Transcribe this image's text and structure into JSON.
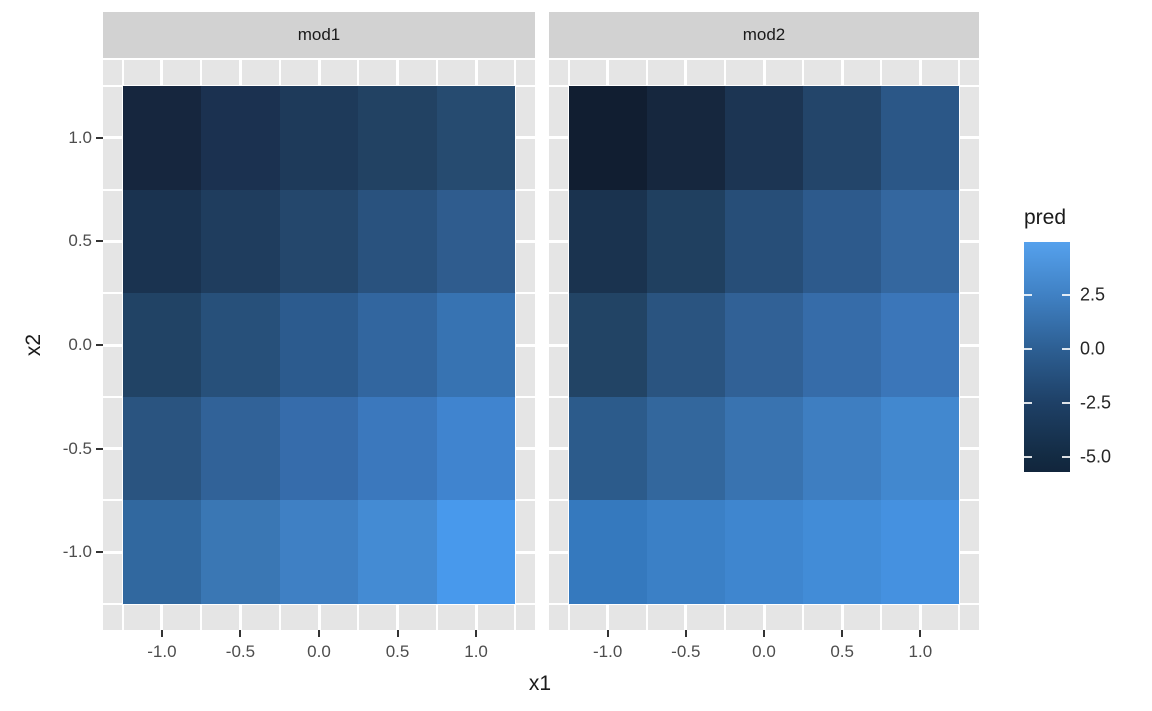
{
  "figure": {
    "background": "#ffffff",
    "panel_bg": "#e5e5e5",
    "strip_bg": "#d2d2d2",
    "grid_color": "#ffffff",
    "axis_tick_color": "#333333",
    "axis_text_color": "#4d4d4d",
    "title_text_color": "#1a1a1a"
  },
  "chart_data": {
    "type": "heatmap",
    "title": "",
    "xlabel": "x1",
    "ylabel": "x2",
    "x": [
      -1.0,
      -0.5,
      0.0,
      0.5,
      1.0
    ],
    "y_top_to_bottom": [
      1.0,
      0.5,
      0.0,
      -0.5,
      -1.0
    ],
    "x_tick_labels": [
      "-1.0",
      "-0.5",
      "0.0",
      "0.5",
      "1.0"
    ],
    "y_tick_labels": [
      "1.0",
      "0.5",
      "0.0",
      "-0.5",
      "-1.0"
    ],
    "x_range_data": [
      -1.25,
      1.25
    ],
    "y_range_data": [
      -1.25,
      1.25
    ],
    "grid": true,
    "facets": [
      {
        "label": "mod1",
        "values_rows_top_to_bottom": [
          [
            -5.1,
            -3.9,
            -3.3,
            -2.7,
            -2.0
          ],
          [
            -3.9,
            -3.0,
            -2.2,
            -1.2,
            -0.3
          ],
          [
            -2.6,
            -1.4,
            -0.3,
            0.6,
            1.6
          ],
          [
            -1.1,
            0.2,
            1.2,
            2.1,
            3.1
          ],
          [
            0.6,
            1.7,
            2.5,
            3.3,
            4.6
          ]
        ],
        "tile_colors_rows_top_to_bottom": [
          [
            "#16263e",
            "#1b3150",
            "#1e3a5a",
            "#224263",
            "#264b70"
          ],
          [
            "#1a3350",
            "#1f3d5e",
            "#24476c",
            "#29527e",
            "#2f5c8e"
          ],
          [
            "#214365",
            "#27507a",
            "#2c5b8e",
            "#32669f",
            "#3773b2"
          ],
          [
            "#2a5480",
            "#316298",
            "#366cab",
            "#3b78bd",
            "#4084cf"
          ],
          [
            "#31689f",
            "#3a77b4",
            "#3f80c4",
            "#448bd3",
            "#4899ec"
          ]
        ]
      },
      {
        "label": "mod2",
        "values_rows_top_to_bottom": [
          [
            -5.6,
            -5.1,
            -3.7,
            -2.4,
            -0.7
          ],
          [
            -4.0,
            -2.9,
            -1.5,
            -0.4,
            0.6
          ],
          [
            -2.6,
            -1.1,
            0.1,
            1.1,
            1.9
          ],
          [
            -0.5,
            0.5,
            1.5,
            2.3,
            3.1
          ],
          [
            2.2,
            2.6,
            3.1,
            3.5,
            4.0
          ]
        ],
        "tile_colors_rows_top_to_bottom": [
          [
            "#111e31",
            "#16273e",
            "#1c3553",
            "#23456a",
            "#2b5787"
          ],
          [
            "#1a334f",
            "#204060",
            "#274e78",
            "#2d5a8c",
            "#34679f"
          ],
          [
            "#224465",
            "#2a5480",
            "#316196",
            "#366ca9",
            "#3b76b9"
          ],
          [
            "#2c5b8b",
            "#33679d",
            "#3973b0",
            "#3e7ec1",
            "#4288cf"
          ],
          [
            "#3579be",
            "#3b80c6",
            "#3f86cf",
            "#428cd7",
            "#4591e0"
          ]
        ]
      }
    ],
    "legend": {
      "title": "pred",
      "tick_labels": [
        "2.5",
        "0.0",
        "-2.5",
        "-5.0"
      ],
      "tick_values": [
        2.5,
        0.0,
        -2.5,
        -5.0
      ],
      "domain": [
        -5.7,
        4.95
      ],
      "gradient_low": "#132B43",
      "gradient_high": "#56B1F7",
      "gradient_css_stops": [
        {
          "pos": 0.0,
          "color": "#55a1ed"
        },
        {
          "pos": 0.23,
          "color": "#4081c4"
        },
        {
          "pos": 0.465,
          "color": "#2d5f93"
        },
        {
          "pos": 0.7,
          "color": "#1e4066"
        },
        {
          "pos": 0.934,
          "color": "#132b43"
        },
        {
          "pos": 1.0,
          "color": "#11253c"
        }
      ],
      "position": "right"
    }
  }
}
